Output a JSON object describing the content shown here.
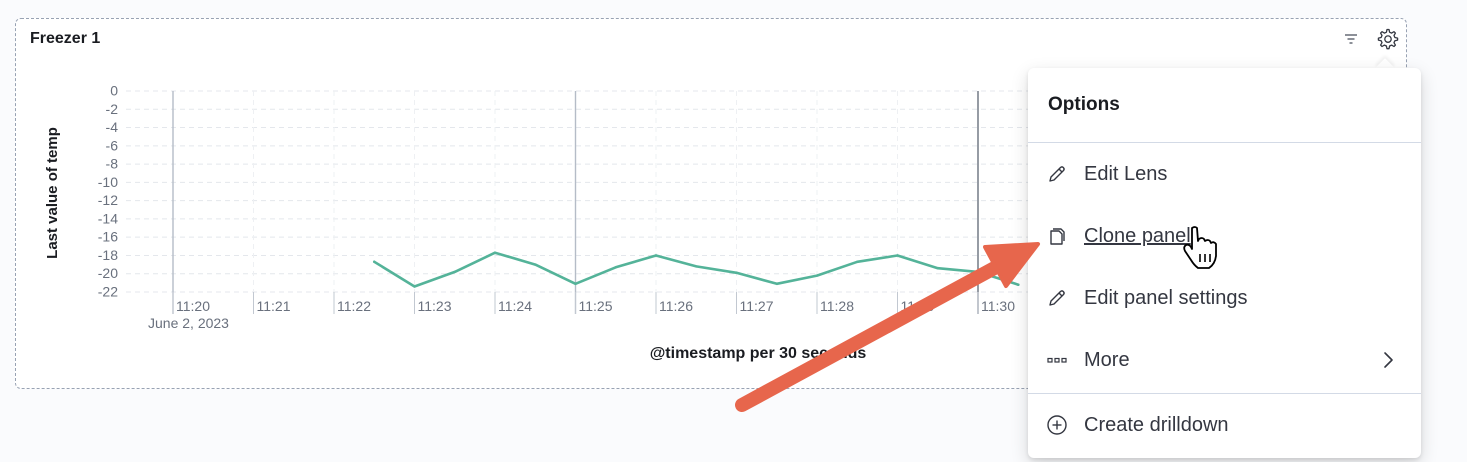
{
  "panel": {
    "title": "Freezer 1",
    "filter_icon": "filter-icon",
    "options_icon": "gear-icon"
  },
  "chart_data": {
    "type": "line",
    "ylabel": "Last value of temp",
    "xlabel": "@timestamp per 30 seconds",
    "ylim": [
      -22,
      0
    ],
    "y_ticks": [
      "0",
      "-2",
      "-4",
      "-6",
      "-8",
      "-10",
      "-12",
      "-14",
      "-16",
      "-18",
      "-20",
      "-22"
    ],
    "x_ticks": [
      "11:20",
      "11:21",
      "11:22",
      "11:23",
      "11:24",
      "11:25",
      "11:26",
      "11:27",
      "11:28",
      "11:29",
      "11:30"
    ],
    "x_tick_date": "June 2, 2023",
    "grid": true,
    "series_color": "#54b399",
    "series": [
      {
        "x": [
          "11:22:30",
          "11:23:00",
          "11:23:30",
          "11:24:00",
          "11:24:30",
          "11:25:00",
          "11:25:30",
          "11:26:00",
          "11:26:30",
          "11:27:00",
          "11:27:30",
          "11:28:00",
          "11:28:30",
          "11:29:00",
          "11:29:30",
          "11:30:00",
          "11:30:30"
        ],
        "values": [
          -18.7,
          -21.4,
          -19.8,
          -17.7,
          -19.0,
          -21.1,
          -19.3,
          -18.0,
          -19.2,
          -19.9,
          -21.1,
          -20.2,
          -18.7,
          -18.0,
          -19.4,
          -19.8,
          -21.2
        ]
      }
    ]
  },
  "menu": {
    "title": "Options",
    "items": [
      {
        "label": "Edit Lens",
        "icon": "pencil-icon"
      },
      {
        "label": "Clone panel",
        "icon": "copy-icon"
      },
      {
        "label": "Edit panel settings",
        "icon": "pencil-icon"
      },
      {
        "label": "More",
        "icon": "dots-icon"
      },
      {
        "label": "Create drilldown",
        "icon": "plus-circle-icon"
      }
    ]
  },
  "annotation": {
    "arrow_color": "#e7664c",
    "cursor": "hand-pointer-icon"
  }
}
